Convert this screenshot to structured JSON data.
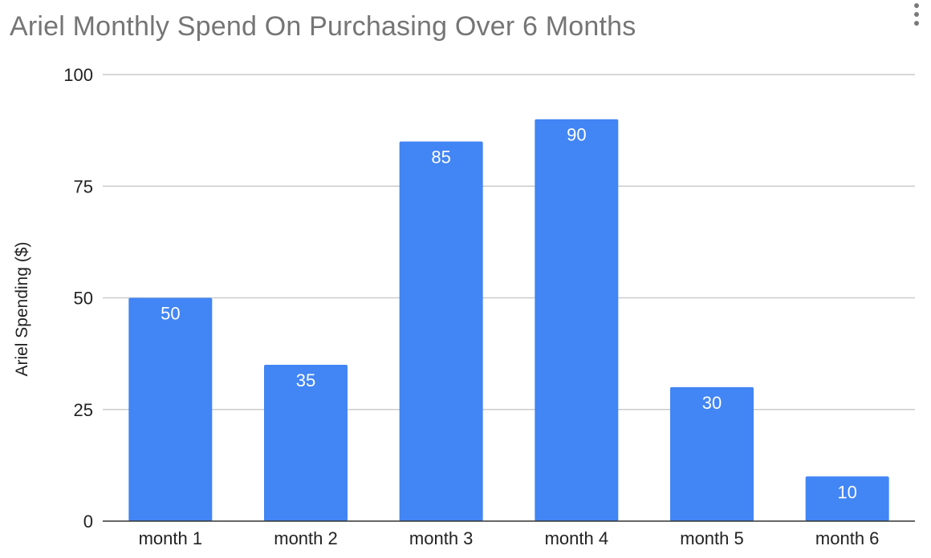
{
  "chart_data": {
    "type": "bar",
    "title": "Ariel Monthly Spend On Purchasing Over 6 Months",
    "xlabel": "",
    "ylabel": "Ariel Spending ($)",
    "categories": [
      "month 1",
      "month 2",
      "month 3",
      "month 4",
      "month 5",
      "month 6"
    ],
    "values": [
      50,
      35,
      85,
      90,
      30,
      10
    ],
    "data_labels": [
      "50",
      "35",
      "85",
      "90",
      "30",
      "10"
    ],
    "ylim": [
      0,
      100
    ],
    "yticks": [
      0,
      25,
      50,
      75,
      100
    ],
    "ytick_labels": [
      "0",
      "25",
      "50",
      "75",
      "100"
    ],
    "grid": true,
    "legend": "none",
    "bar_color": "#4285F4",
    "gridline_color": "#cccccc",
    "axis_color": "#333333"
  },
  "chart_menu": {
    "icon": "more-vert-icon"
  }
}
